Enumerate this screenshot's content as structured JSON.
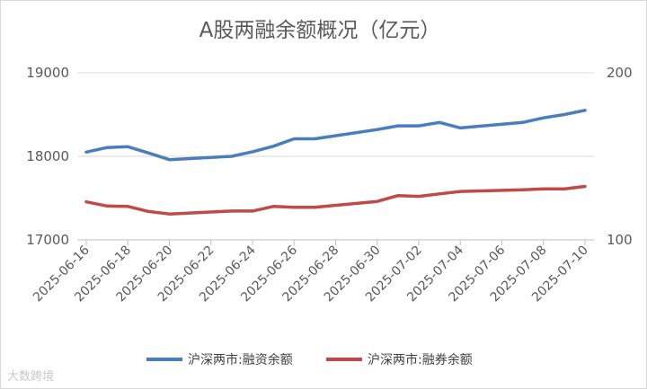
{
  "chart_data": {
    "type": "line",
    "title": "A股两融余额概况（亿元）",
    "y_left": {
      "range": [
        17000,
        19000
      ],
      "ticks": [
        "17000",
        "18000",
        "19000"
      ]
    },
    "y_right": {
      "range": [
        100,
        200
      ],
      "ticks": [
        "100",
        "200"
      ]
    },
    "x_ticks": [
      "2025-06-16",
      "2025-06-18",
      "2025-06-20",
      "2025-06-22",
      "2025-06-24",
      "2025-06-26",
      "2025-06-28",
      "2025-06-30",
      "2025-07-02",
      "2025-07-04",
      "2025-07-06",
      "2025-07-08",
      "2025-07-10"
    ],
    "grid": true,
    "legend_position": "bottom",
    "series": [
      {
        "name": "沪深两市:融资余额",
        "color": "#4a7ebb",
        "axis": "left",
        "points": [
          [
            "2025-06-16",
            18050
          ],
          [
            "2025-06-17",
            18105
          ],
          [
            "2025-06-18",
            18115
          ],
          [
            "2025-06-19",
            18040
          ],
          [
            "2025-06-20",
            17960
          ],
          [
            "2025-06-23",
            18000
          ],
          [
            "2025-06-24",
            18055
          ],
          [
            "2025-06-25",
            18120
          ],
          [
            "2025-06-26",
            18210
          ],
          [
            "2025-06-27",
            18210
          ],
          [
            "2025-06-30",
            18320
          ],
          [
            "2025-07-01",
            18365
          ],
          [
            "2025-07-02",
            18365
          ],
          [
            "2025-07-03",
            18405
          ],
          [
            "2025-07-04",
            18340
          ],
          [
            "2025-07-07",
            18405
          ],
          [
            "2025-07-08",
            18460
          ],
          [
            "2025-07-09",
            18500
          ],
          [
            "2025-07-10",
            18550
          ]
        ]
      },
      {
        "name": "沪深两市:融券余额",
        "color": "#be4b48",
        "axis": "left",
        "points": [
          [
            "2025-06-16",
            17455
          ],
          [
            "2025-06-17",
            17405
          ],
          [
            "2025-06-18",
            17400
          ],
          [
            "2025-06-19",
            17340
          ],
          [
            "2025-06-20",
            17310
          ],
          [
            "2025-06-23",
            17345
          ],
          [
            "2025-06-24",
            17345
          ],
          [
            "2025-06-25",
            17400
          ],
          [
            "2025-06-26",
            17390
          ],
          [
            "2025-06-27",
            17390
          ],
          [
            "2025-06-30",
            17460
          ],
          [
            "2025-07-01",
            17530
          ],
          [
            "2025-07-02",
            17520
          ],
          [
            "2025-07-03",
            17550
          ],
          [
            "2025-07-04",
            17580
          ],
          [
            "2025-07-07",
            17600
          ],
          [
            "2025-07-08",
            17610
          ],
          [
            "2025-07-09",
            17610
          ],
          [
            "2025-07-10",
            17640
          ]
        ]
      }
    ]
  },
  "watermark": "大数跨境"
}
